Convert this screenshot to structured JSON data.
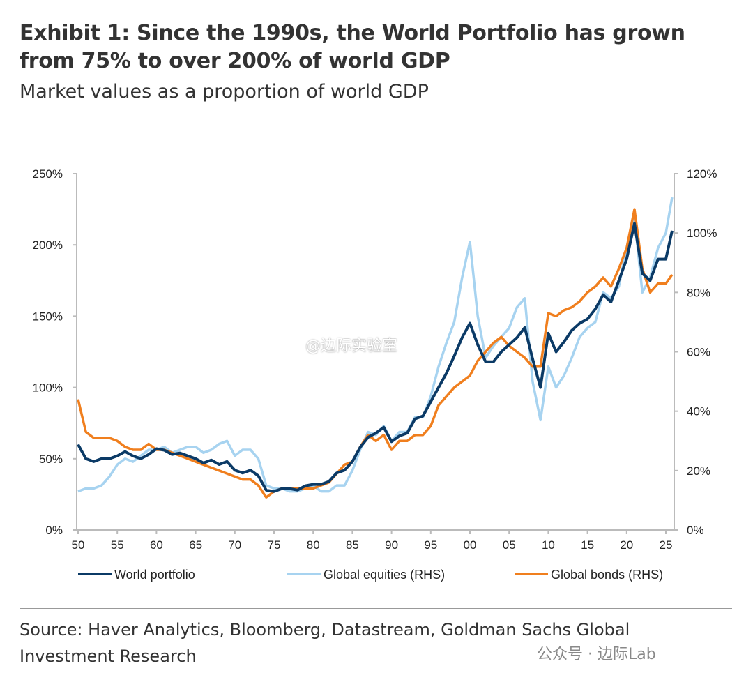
{
  "title": "Exhibit 1: Since the 1990s, the World Portfolio has grown from 75% to over 200% of world GDP",
  "subtitle": "Market values as a proportion of world GDP",
  "source": "Source: Haver Analytics, Bloomberg, Datastream, Goldman Sachs Global Investment Research",
  "watermarks": [
    "@边际实验室",
    "公众号 · 边际Lab"
  ],
  "chart_data": {
    "type": "line",
    "title": "",
    "xlabel": "",
    "ylabel_left": "",
    "ylabel_right": "",
    "xlim": [
      1950,
      2026
    ],
    "ylim_left": [
      0,
      250
    ],
    "ylim_right": [
      0,
      120
    ],
    "x_ticks": [
      "50",
      "55",
      "60",
      "65",
      "70",
      "75",
      "80",
      "85",
      "90",
      "95",
      "00",
      "05",
      "10",
      "15",
      "20",
      "25"
    ],
    "y_ticks_left": [
      "0%",
      "50%",
      "100%",
      "150%",
      "200%",
      "250%"
    ],
    "y_ticks_right": [
      "0%",
      "20%",
      "40%",
      "60%",
      "80%",
      "100%",
      "120%"
    ],
    "grid": false,
    "legend_position": "bottom",
    "x": [
      1950,
      1951,
      1952,
      1953,
      1954,
      1955,
      1956,
      1957,
      1958,
      1959,
      1960,
      1961,
      1962,
      1963,
      1964,
      1965,
      1966,
      1967,
      1968,
      1969,
      1970,
      1971,
      1972,
      1973,
      1974,
      1975,
      1976,
      1977,
      1978,
      1979,
      1980,
      1981,
      1982,
      1983,
      1984,
      1985,
      1986,
      1987,
      1988,
      1989,
      1990,
      1991,
      1992,
      1993,
      1994,
      1995,
      1996,
      1997,
      1998,
      1999,
      2000,
      2001,
      2002,
      2003,
      2004,
      2005,
      2006,
      2007,
      2008,
      2009,
      2010,
      2011,
      2012,
      2013,
      2014,
      2015,
      2016,
      2017,
      2018,
      2019,
      2020,
      2021,
      2022,
      2023,
      2024,
      2025,
      2025.8
    ],
    "series": [
      {
        "name": "World portfolio",
        "axis": "left",
        "color": "#0b3a66",
        "values": [
          60,
          50,
          48,
          50,
          50,
          52,
          55,
          52,
          50,
          53,
          57,
          56,
          53,
          54,
          52,
          50,
          47,
          49,
          46,
          48,
          42,
          40,
          42,
          38,
          28,
          27,
          29,
          29,
          28,
          31,
          32,
          32,
          34,
          40,
          42,
          48,
          58,
          65,
          68,
          72,
          62,
          66,
          68,
          78,
          80,
          90,
          100,
          110,
          122,
          135,
          145,
          130,
          118,
          118,
          125,
          130,
          135,
          142,
          120,
          100,
          138,
          125,
          132,
          140,
          145,
          148,
          155,
          165,
          160,
          175,
          190,
          215,
          180,
          175,
          190,
          190,
          210
        ]
      },
      {
        "name": "Global equities (RHS)",
        "axis": "right",
        "color": "#a7d3f0",
        "values": [
          13,
          14,
          14,
          15,
          18,
          22,
          24,
          23,
          25,
          27,
          27,
          28,
          26,
          27,
          28,
          28,
          26,
          27,
          29,
          30,
          25,
          27,
          27,
          24,
          15,
          14,
          14,
          13,
          13,
          14,
          15,
          13,
          13,
          15,
          15,
          20,
          27,
          33,
          32,
          35,
          30,
          33,
          33,
          38,
          38,
          45,
          55,
          63,
          70,
          85,
          97,
          72,
          58,
          62,
          65,
          68,
          75,
          78,
          50,
          37,
          55,
          48,
          52,
          58,
          65,
          68,
          70,
          80,
          78,
          82,
          95,
          105,
          80,
          85,
          95,
          100,
          112
        ]
      },
      {
        "name": "Global bonds (RHS)",
        "axis": "right",
        "color": "#f07f1e",
        "values": [
          44,
          33,
          31,
          31,
          31,
          30,
          28,
          27,
          27,
          29,
          27,
          27,
          26,
          25,
          24,
          23,
          22,
          21,
          20,
          19,
          18,
          17,
          17,
          15,
          11,
          13,
          14,
          14,
          14,
          14,
          14,
          15,
          16,
          19,
          22,
          23,
          28,
          32,
          30,
          32,
          27,
          30,
          30,
          32,
          32,
          35,
          42,
          45,
          48,
          50,
          52,
          57,
          60,
          63,
          65,
          62,
          60,
          58,
          55,
          55,
          73,
          72,
          74,
          75,
          77,
          80,
          82,
          85,
          82,
          88,
          95,
          108,
          88,
          80,
          83,
          83,
          86
        ]
      }
    ]
  }
}
